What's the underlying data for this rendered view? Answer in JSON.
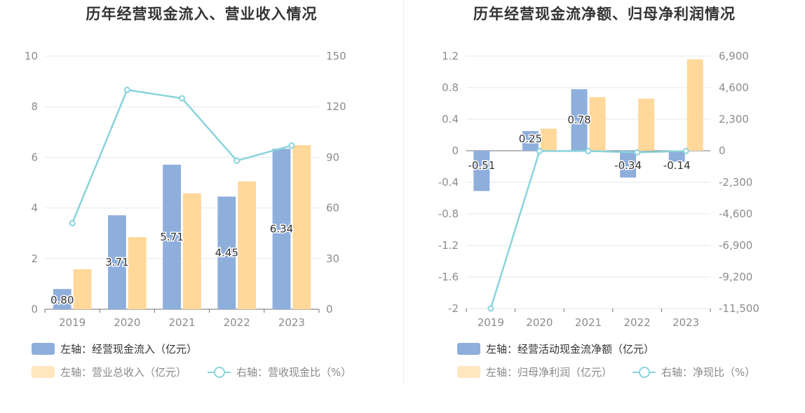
{
  "colors": {
    "bar_blue": "#8eaedc",
    "bar_orange": "#ffd89a",
    "line": "#89d4dc",
    "grid": "#e3e7f1",
    "axis_text": "#8c8c8c"
  },
  "chart_data": [
    {
      "type": "bar",
      "title": "历年经营现金流入、营业收入情况",
      "categories": [
        "2019",
        "2020",
        "2021",
        "2022",
        "2023"
      ],
      "left_axis": {
        "ylim": [
          0,
          10
        ],
        "ticks": [
          "0",
          "2",
          "4",
          "6",
          "8",
          "10"
        ]
      },
      "right_axis": {
        "ylim": [
          0,
          150
        ],
        "ticks": [
          "0",
          "30",
          "60",
          "90",
          "120",
          "150"
        ]
      },
      "series": [
        {
          "name": "左轴：经营现金流入（亿元）",
          "axis": "left",
          "kind": "bar",
          "values": [
            0.8,
            3.71,
            5.71,
            4.45,
            6.34
          ],
          "labels": [
            "0.80",
            "3.71",
            "5.71",
            "4.45",
            "6.34"
          ]
        },
        {
          "name": "左轴：营业总收入（亿元）",
          "axis": "left",
          "kind": "bar",
          "values": [
            1.58,
            2.85,
            4.58,
            5.05,
            6.48
          ]
        },
        {
          "name": "右轴：营收现金比（%）",
          "axis": "right",
          "kind": "line",
          "values": [
            51,
            130,
            125,
            88,
            97
          ]
        }
      ]
    },
    {
      "type": "bar",
      "title": "历年经营现金流净额、归母净利润情况",
      "categories": [
        "2019",
        "2020",
        "2021",
        "2022",
        "2023"
      ],
      "left_axis": {
        "ylim": [
          -2,
          1.2
        ],
        "ticks": [
          "-2",
          "-1.6",
          "-1.2",
          "-0.8",
          "-0.4",
          "0",
          "0.4",
          "0.8",
          "1.2"
        ]
      },
      "right_axis": {
        "ylim": [
          -11500,
          6900
        ],
        "ticks": [
          "-11,500",
          "-9,200",
          "-6,900",
          "-4,600",
          "-2,300",
          "0",
          "2,300",
          "4,600",
          "6,900"
        ]
      },
      "series": [
        {
          "name": "左轴：经营活动现金流净额（亿元）",
          "axis": "left",
          "kind": "bar",
          "values": [
            -0.51,
            0.25,
            0.78,
            -0.34,
            -0.14
          ],
          "labels": [
            "-0.51",
            "0.25",
            "0.78",
            "-0.34",
            "-0.14"
          ]
        },
        {
          "name": "左轴：归母净利润（亿元）",
          "axis": "left",
          "kind": "bar",
          "values": [
            0,
            0.28,
            0.68,
            0.66,
            1.16
          ]
        },
        {
          "name": "右轴：净现比（%）",
          "axis": "right",
          "kind": "line",
          "values": [
            -11500,
            -20,
            -20,
            -120,
            -20
          ]
        }
      ]
    }
  ]
}
